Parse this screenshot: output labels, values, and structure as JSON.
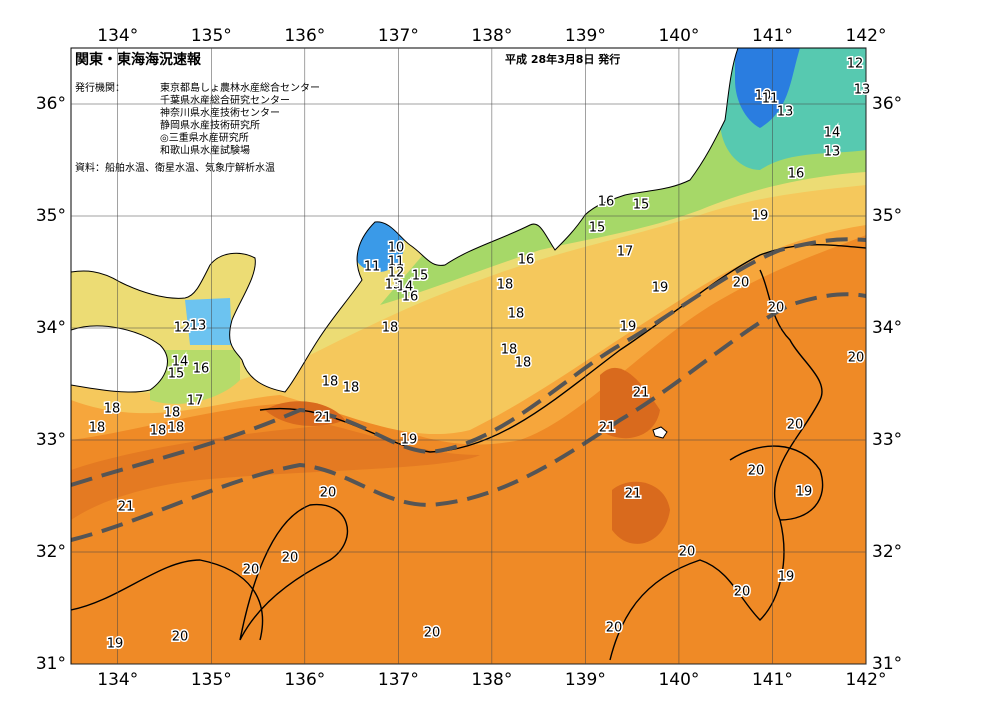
{
  "map": {
    "title": "関東・東海海況速報",
    "issue_date": "平成 28年3月8日 発行",
    "issuer_label": "発行機関：",
    "issuers": [
      "東京都島しょ農林水産総合センター",
      "千葉県水産総合研究センター",
      "神奈川県水産技術センター",
      "静岡県水産技術研究所",
      "◎三重県水産研究所",
      "和歌山県水産試験場"
    ],
    "source": "資料：船舶水温、衛星水温、気象庁解析水温",
    "lon_range": [
      133.5,
      142
    ],
    "lat_range": [
      31,
      36.5
    ],
    "lon_ticks": [
      {
        "value": 134,
        "label": "134°"
      },
      {
        "value": 135,
        "label": "135°"
      },
      {
        "value": 136,
        "label": "136°"
      },
      {
        "value": 137,
        "label": "137°"
      },
      {
        "value": 138,
        "label": "138°"
      },
      {
        "value": 139,
        "label": "139°"
      },
      {
        "value": 140,
        "label": "140°"
      },
      {
        "value": 141,
        "label": "141°"
      },
      {
        "value": 142,
        "label": "142°"
      }
    ],
    "lat_ticks": [
      {
        "value": 31,
        "label": "31°"
      },
      {
        "value": 32,
        "label": "32°"
      },
      {
        "value": 33,
        "label": "33°"
      },
      {
        "value": 34,
        "label": "34°"
      },
      {
        "value": 35,
        "label": "35°"
      },
      {
        "value": 36,
        "label": "36°"
      }
    ],
    "contour_labels": [
      12,
      13,
      10,
      11,
      13,
      14,
      13,
      16,
      19,
      16,
      15,
      15,
      17,
      10,
      11,
      11,
      12,
      15,
      13,
      14,
      16,
      16,
      18,
      19,
      20,
      18,
      18,
      20,
      19,
      12,
      13,
      18,
      18,
      20,
      14,
      16,
      15,
      18,
      18,
      21,
      17,
      18,
      18,
      20,
      21,
      21,
      18,
      18,
      18,
      19,
      20,
      19,
      21,
      20,
      21,
      20,
      20,
      20,
      19,
      20,
      20,
      20,
      20,
      19
    ]
  }
}
